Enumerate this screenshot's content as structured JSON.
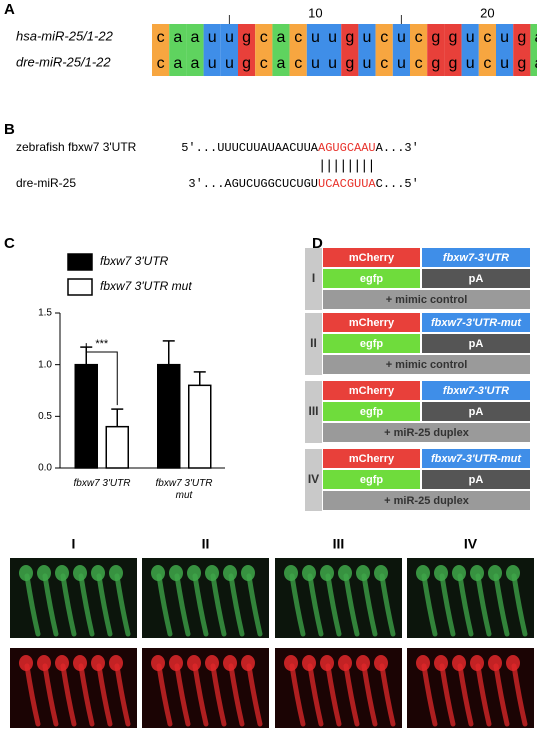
{
  "panels": [
    "A",
    "B",
    "C",
    "D"
  ],
  "alignment": {
    "rows": [
      {
        "name": "hsa-miR-25/1-22",
        "sequence": "caauugcacuugucucggucuga"
      },
      {
        "name": "dre-miR-25/1-22",
        "sequence": "caauugcacuugucucggucuga"
      }
    ],
    "minor_ticks": [
      5,
      15
    ],
    "major_ticks": [
      10,
      20
    ],
    "nucleotide_colors": {
      "a": "#5fd35f",
      "c": "#f7a640",
      "g": "#e8403a",
      "u": "#3f8ee8"
    }
  },
  "pairing": {
    "target": {
      "name": "zebrafish fbxw7 3'UTR",
      "flank_5": "5'...UUUCUUAUAACUUA",
      "site": "AGUGCAAU",
      "flank_3": "A...3'"
    },
    "pairs": "||||||||",
    "mirna": {
      "name": "dre-miR-25",
      "flank_5": "3'...AGUCUGGCUCUGU",
      "site": "UCACGUUA",
      "flank_3": "C...5'"
    },
    "site_color": "#e8312a"
  },
  "chart_data": {
    "type": "bar",
    "categories": [
      "fbxw7 3'UTR",
      "fbxw7 3'UTR mut"
    ],
    "series": [
      {
        "name": "fbxw7 3'UTR",
        "color": "#000000",
        "values": [
          1.0,
          1.0
        ],
        "errors": [
          0.17,
          0.23
        ]
      },
      {
        "name": "fbxw7 3'UTR mut",
        "color": "#ffffff",
        "values": [
          0.4,
          0.8
        ],
        "errors": [
          0.17,
          0.13
        ]
      }
    ],
    "ylim": [
      0,
      1.5
    ],
    "yticks": [
      {
        "value": 0,
        "label": "0.0"
      },
      0.5,
      {
        "value": 1,
        "label": "1.0"
      },
      1.5
    ],
    "annotations": [
      {
        "text": "***"
      }
    ]
  },
  "constructs": {
    "reporter": "mCherry",
    "control": "egfp",
    "polya": "pA",
    "items": [
      {
        "label": "I",
        "utr": "fbxw7-3'UTR",
        "treatment": "+ mimic control"
      },
      {
        "label": "II",
        "utr": "fbxw7-3'UTR-mut",
        "treatment": "+ mimic control"
      },
      {
        "label": "III",
        "utr": "fbxw7-3'UTR",
        "treatment": "+ miR-25 duplex"
      },
      {
        "label": "IV",
        "utr": "fbxw7-3'UTR-mut",
        "treatment": "+ miR-25 duplex"
      }
    ]
  },
  "micrographs": {
    "columns": [
      "I",
      "II",
      "III",
      "IV"
    ]
  }
}
